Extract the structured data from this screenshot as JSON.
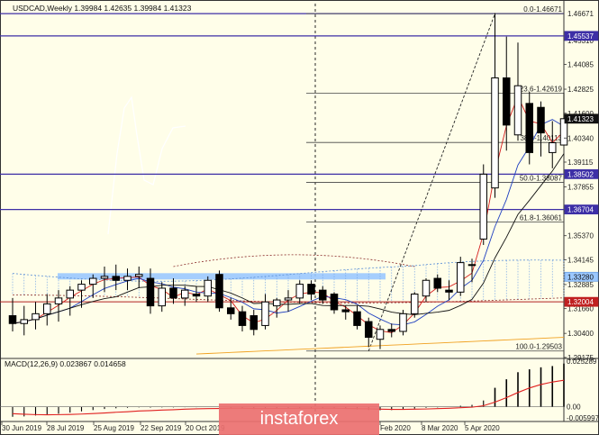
{
  "header": {
    "symbol_info": "USDCAD,Weekly  1.39984 1.42635 1.39984 1.41323"
  },
  "watermark": {
    "text": "instaforex"
  },
  "colors": {
    "background": "#fffee9",
    "bull": "#ffffff",
    "bear": "#000000",
    "level": "#3d2fa6",
    "fib": "#444444",
    "macd_signal": "#e02020",
    "highlight": "#9bc8ff"
  },
  "chart_data": [
    {
      "type": "candlestick",
      "ylim": [
        1.2917,
        1.4718
      ],
      "x_labels": [
        "30 Jun 2019",
        "28 Jul 2019",
        "25 Aug 2019",
        "22 Sep 2019",
        "20 Oct 2019",
        "Feb 2020",
        "8 Mar 2020",
        "5 Apr 2020"
      ],
      "y_ticks": [
        "1.45310",
        "1.44085",
        "1.42825",
        "1.41600",
        "1.40340",
        "1.39115",
        "1.37855",
        "1.36630",
        "1.35370",
        "1.34145",
        "1.32885",
        "1.31660",
        "1.30400",
        "1.29175"
      ],
      "price_tags": [
        {
          "label": "1.46671",
          "value": 1.46671,
          "style": "plain"
        },
        {
          "label": "1.45537",
          "value": 1.45537,
          "style": "box"
        },
        {
          "label": "1.41323",
          "value": 1.41323,
          "style": "current"
        },
        {
          "label": "1.38502",
          "value": 1.38502,
          "style": "box"
        },
        {
          "label": "1.36704",
          "value": 1.36704,
          "style": "box"
        },
        {
          "label": "1.33280",
          "value": 1.3328,
          "style": "box"
        },
        {
          "label": "1.32004",
          "value": 1.32004,
          "style": "red"
        }
      ],
      "horizontal_levels": [
        1.45537,
        1.38502,
        1.36704
      ],
      "fibonacci": [
        {
          "label": "0.0-1.46671",
          "value": 1.46671
        },
        {
          "label": "23.6-1.42619",
          "value": 1.42619
        },
        {
          "label": "38.2-1.40113",
          "value": 1.40113
        },
        {
          "label": "50.0-1.38087",
          "value": 1.38087
        },
        {
          "label": "61.8-1.36061",
          "value": 1.36061
        },
        {
          "label": "100.0-1.29503",
          "value": 1.29503
        }
      ],
      "candles": [
        {
          "open": 1.313,
          "high": 1.322,
          "low": 1.305,
          "close": 1.309
        },
        {
          "open": 1.309,
          "high": 1.318,
          "low": 1.303,
          "close": 1.311
        },
        {
          "open": 1.311,
          "high": 1.32,
          "low": 1.306,
          "close": 1.314
        },
        {
          "open": 1.314,
          "high": 1.324,
          "low": 1.308,
          "close": 1.319
        },
        {
          "open": 1.319,
          "high": 1.326,
          "low": 1.31,
          "close": 1.322
        },
        {
          "open": 1.322,
          "high": 1.328,
          "low": 1.313,
          "close": 1.326
        },
        {
          "open": 1.326,
          "high": 1.331,
          "low": 1.317,
          "close": 1.329
        },
        {
          "open": 1.329,
          "high": 1.334,
          "low": 1.322,
          "close": 1.332
        },
        {
          "open": 1.332,
          "high": 1.338,
          "low": 1.325,
          "close": 1.333
        },
        {
          "open": 1.333,
          "high": 1.339,
          "low": 1.326,
          "close": 1.331
        },
        {
          "open": 1.331,
          "high": 1.337,
          "low": 1.326,
          "close": 1.333
        },
        {
          "open": 1.333,
          "high": 1.338,
          "low": 1.327,
          "close": 1.334
        },
        {
          "open": 1.332,
          "high": 1.337,
          "low": 1.314,
          "close": 1.318
        },
        {
          "open": 1.318,
          "high": 1.33,
          "low": 1.315,
          "close": 1.327
        },
        {
          "open": 1.327,
          "high": 1.332,
          "low": 1.319,
          "close": 1.322
        },
        {
          "open": 1.322,
          "high": 1.328,
          "low": 1.318,
          "close": 1.326
        },
        {
          "open": 1.324,
          "high": 1.328,
          "low": 1.32,
          "close": 1.323
        },
        {
          "open": 1.323,
          "high": 1.333,
          "low": 1.32,
          "close": 1.331
        },
        {
          "open": 1.334,
          "high": 1.336,
          "low": 1.315,
          "close": 1.317
        },
        {
          "open": 1.317,
          "high": 1.322,
          "low": 1.311,
          "close": 1.314
        },
        {
          "open": 1.315,
          "high": 1.318,
          "low": 1.305,
          "close": 1.308
        },
        {
          "open": 1.313,
          "high": 1.316,
          "low": 1.303,
          "close": 1.306
        },
        {
          "open": 1.308,
          "high": 1.324,
          "low": 1.306,
          "close": 1.32
        },
        {
          "open": 1.318,
          "high": 1.322,
          "low": 1.312,
          "close": 1.321
        },
        {
          "open": 1.321,
          "high": 1.326,
          "low": 1.315,
          "close": 1.322
        },
        {
          "open": 1.322,
          "high": 1.331,
          "low": 1.319,
          "close": 1.329
        },
        {
          "open": 1.329,
          "high": 1.331,
          "low": 1.321,
          "close": 1.324
        },
        {
          "open": 1.326,
          "high": 1.328,
          "low": 1.319,
          "close": 1.321
        },
        {
          "open": 1.324,
          "high": 1.325,
          "low": 1.314,
          "close": 1.316
        },
        {
          "open": 1.316,
          "high": 1.318,
          "low": 1.311,
          "close": 1.315
        },
        {
          "open": 1.315,
          "high": 1.318,
          "low": 1.306,
          "close": 1.308
        },
        {
          "open": 1.31,
          "high": 1.312,
          "low": 1.297,
          "close": 1.302
        },
        {
          "open": 1.301,
          "high": 1.308,
          "low": 1.296,
          "close": 1.306
        },
        {
          "open": 1.306,
          "high": 1.309,
          "low": 1.302,
          "close": 1.305
        },
        {
          "open": 1.305,
          "high": 1.316,
          "low": 1.303,
          "close": 1.314
        },
        {
          "open": 1.314,
          "high": 1.325,
          "low": 1.312,
          "close": 1.324
        },
        {
          "open": 1.323,
          "high": 1.332,
          "low": 1.32,
          "close": 1.331
        },
        {
          "open": 1.332,
          "high": 1.334,
          "low": 1.325,
          "close": 1.327
        },
        {
          "open": 1.326,
          "high": 1.331,
          "low": 1.321,
          "close": 1.325
        },
        {
          "open": 1.325,
          "high": 1.343,
          "low": 1.323,
          "close": 1.34
        },
        {
          "open": 1.339,
          "high": 1.342,
          "low": 1.33,
          "close": 1.339
        },
        {
          "open": 1.352,
          "high": 1.39,
          "low": 1.349,
          "close": 1.385
        },
        {
          "open": 1.378,
          "high": 1.467,
          "low": 1.373,
          "close": 1.434
        },
        {
          "open": 1.434,
          "high": 1.455,
          "low": 1.397,
          "close": 1.41
        },
        {
          "open": 1.405,
          "high": 1.452,
          "low": 1.402,
          "close": 1.43
        },
        {
          "open": 1.421,
          "high": 1.427,
          "low": 1.39,
          "close": 1.396
        },
        {
          "open": 1.419,
          "high": 1.422,
          "low": 1.394,
          "close": 1.406
        },
        {
          "open": 1.396,
          "high": 1.412,
          "low": 1.388,
          "close": 1.401
        },
        {
          "open": 1.39984,
          "high": 1.42635,
          "low": 1.39984,
          "close": 1.41323
        }
      ]
    },
    {
      "type": "bar",
      "title": "MACD(12,26,9) 0.023867 0.014658",
      "ylim": [
        -0.0071,
        0.0262
      ],
      "y_ticks": [
        "0.025289",
        "0.00",
        "-0.005997"
      ],
      "histogram": [
        -0.0055,
        -0.0053,
        -0.0048,
        -0.0043,
        -0.0038,
        -0.0032,
        -0.0025,
        -0.0018,
        -0.0012,
        -0.0008,
        -0.0005,
        -0.0003,
        -0.0004,
        -0.0003,
        -0.0003,
        -0.0002,
        -0.0002,
        -0.0001,
        -0.0003,
        -0.0005,
        -0.0008,
        -0.0012,
        -0.0011,
        -0.0009,
        -0.0008,
        -0.0006,
        -0.0006,
        -0.0007,
        -0.0009,
        -0.0011,
        -0.0014,
        -0.0018,
        -0.0019,
        -0.0018,
        -0.0014,
        -0.001,
        -0.0005,
        -0.0003,
        -0.0001,
        0.0006,
        0.0011,
        0.0035,
        0.0105,
        0.0152,
        0.0191,
        0.0207,
        0.0218,
        0.0225,
        0.023867
      ],
      "signal": [
        -0.0038,
        -0.0041,
        -0.0043,
        -0.0044,
        -0.0043,
        -0.0042,
        -0.004,
        -0.0037,
        -0.0034,
        -0.003,
        -0.0027,
        -0.0023,
        -0.0021,
        -0.0018,
        -0.0016,
        -0.0013,
        -0.0011,
        -0.001,
        -0.0009,
        -0.0008,
        -0.0008,
        -0.0009,
        -0.0009,
        -0.0009,
        -0.0009,
        -0.0008,
        -0.0008,
        -0.0008,
        -0.0008,
        -0.0009,
        -0.001,
        -0.0011,
        -0.0013,
        -0.0014,
        -0.0014,
        -0.0013,
        -0.0012,
        -0.001,
        -0.0008,
        -0.0005,
        -0.0002,
        0.0006,
        0.0026,
        0.0051,
        0.0079,
        0.0104,
        0.0123,
        0.0137,
        0.014658
      ]
    }
  ]
}
